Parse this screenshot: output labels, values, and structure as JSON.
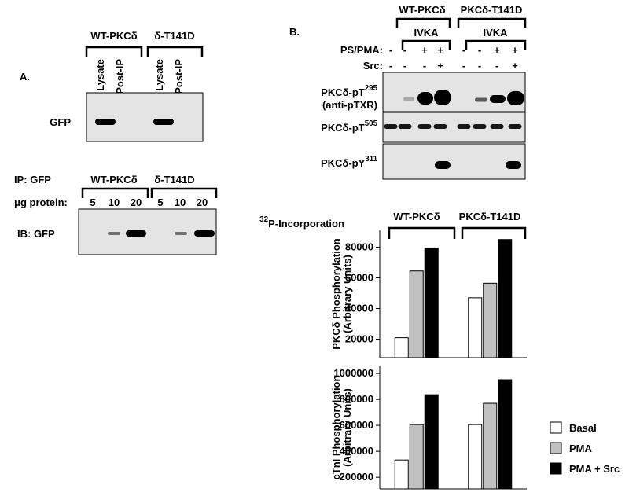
{
  "panel_a": {
    "label": "A.",
    "groups": [
      "WT-PKCδ",
      "δ-T141D"
    ],
    "lanes": [
      "Lysate",
      "Post-IP",
      "Lysate",
      "Post-IP"
    ],
    "row": "GFP",
    "ip": "IP: GFP",
    "groups2": [
      "WT-PKCδ",
      "δ-T141D"
    ],
    "protein_label": "μg protein:",
    "amounts": [
      "5",
      "10",
      "20",
      "5",
      "10",
      "20"
    ],
    "ib": "IB: GFP"
  },
  "panel_b": {
    "label": "B.",
    "groups": [
      "WT-PKCδ",
      "PKCδ-T141D"
    ],
    "ivka": [
      "IVKA",
      "IVKA"
    ],
    "treatments": [
      {
        "name": "PS/PMA:",
        "signs": [
          "-",
          "-",
          "+",
          "+",
          "-",
          "-",
          "+",
          "+"
        ]
      },
      {
        "name": "Src:",
        "signs": [
          "-",
          "-",
          "-",
          "+",
          "-",
          "-",
          "-",
          "+"
        ]
      }
    ],
    "rows": [
      {
        "text": "PKCδ-pT",
        "sup": "295",
        "note": "(anti-pTXR)"
      },
      {
        "text": "PKCδ-pT",
        "sup": "505"
      },
      {
        "text": "PKCδ-pY",
        "sup": "311"
      }
    ]
  },
  "incorporation": {
    "sup": "32",
    "text": "P-Incorporation"
  },
  "chart_data": [
    {
      "type": "bar",
      "categories": [
        "WT-PKCδ",
        "PKCδ-T141D"
      ],
      "ylabel": "PKCδ Phosphorylation",
      "ylabel_sub": "(Arbitrary Units)",
      "ylim": [
        8000,
        91000
      ],
      "yticks": [
        20000,
        40000,
        60000,
        80000
      ],
      "series": [
        {
          "name": "Basal",
          "color": "#ffffff",
          "values": [
            21000,
            47000
          ]
        },
        {
          "name": "PMA",
          "color": "#c0c0c0",
          "values": [
            64500,
            56500
          ]
        },
        {
          "name": "PMA + Src",
          "color": "#000000",
          "values": [
            79500,
            85000
          ]
        }
      ]
    },
    {
      "type": "bar",
      "ylabel": "cTnI Phosphorylation",
      "ylabel_sub": "(Arbitrary Units)",
      "ylim": [
        110000,
        1055000
      ],
      "yticks": [
        200000,
        400000,
        600000,
        800000,
        1000000
      ],
      "series": [
        {
          "color": "#ffffff",
          "values": [
            333000,
            606000
          ]
        },
        {
          "color": "#c0c0c0",
          "values": [
            606000,
            770000
          ]
        },
        {
          "color": "#000000",
          "values": [
            836000,
            952000
          ]
        }
      ]
    }
  ]
}
